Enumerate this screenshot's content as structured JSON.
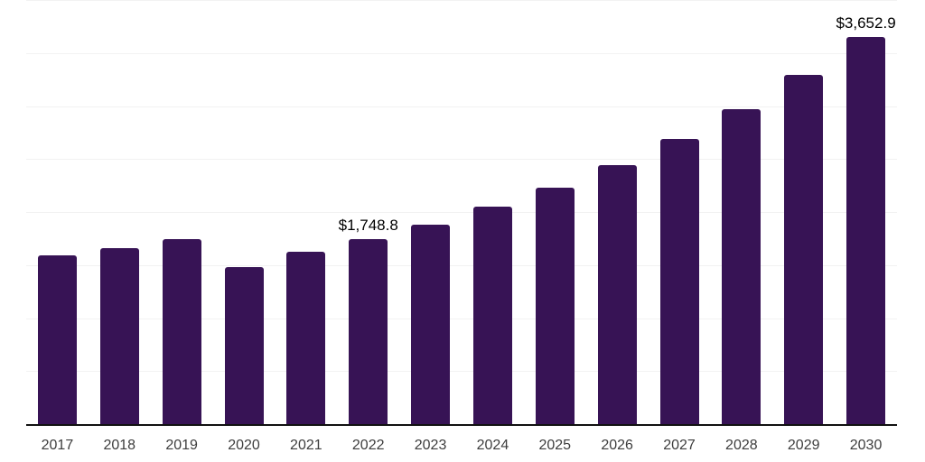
{
  "chart_data": {
    "type": "bar",
    "title": "",
    "xlabel": "",
    "ylabel": "",
    "categories": [
      "2017",
      "2018",
      "2019",
      "2020",
      "2021",
      "2022",
      "2023",
      "2024",
      "2025",
      "2026",
      "2027",
      "2028",
      "2029",
      "2030"
    ],
    "values": [
      1590,
      1656,
      1744,
      1484,
      1625,
      1748.8,
      1878,
      2048,
      2227,
      2440,
      2689,
      2970,
      3291,
      3652.9
    ],
    "data_labels": {
      "2022": "$1,748.8",
      "2030": "$3,652.9"
    },
    "ylim": [
      0,
      4000
    ],
    "gridline_interval": 500,
    "grid": true,
    "legend": false,
    "y_axis_ticks_visible": false,
    "colors": {
      "bar": "#371355",
      "gridline": "#f2f2f2",
      "axis_line": "#111111",
      "tick_label": "#3d3d3d",
      "data_label": "#000000",
      "background": "#ffffff"
    }
  }
}
